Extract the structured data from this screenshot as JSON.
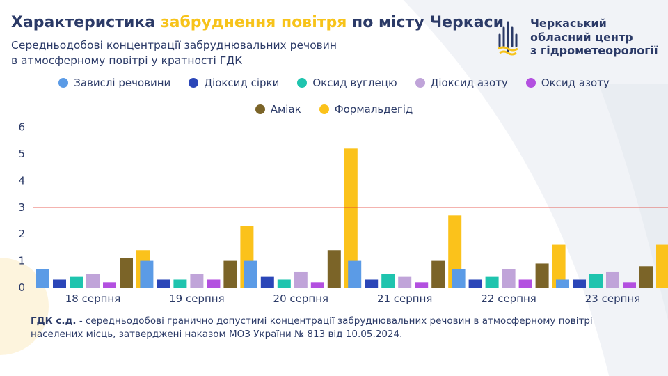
{
  "header": {
    "title_part1": "Характеристика ",
    "title_highlight": "забруднення повітря",
    "title_part2": " по місту Черкаси",
    "subtitle_line1": "Середньодобові концентрації забруднювальних речовин",
    "subtitle_line2": "в атмосферному повітрі у кратності ГДК"
  },
  "logo": {
    "line1": "Черкаський",
    "line2": "обласний центр",
    "line3": "з гідрометеорології",
    "icon": "water-drop-icon"
  },
  "colors": {
    "title": "#2b3a67",
    "highlight": "#f7c31a",
    "threshold": "#e0342a"
  },
  "chart_data": {
    "type": "bar",
    "categories": [
      "18 серпня",
      "19 серпня",
      "20 серпня",
      "21 серпня",
      "22 серпня",
      "23 серпня"
    ],
    "series": [
      {
        "name": "Завислі речовини",
        "color": "#5b9be6",
        "values": [
          0.7,
          1.0,
          1.0,
          1.0,
          0.7,
          0.3
        ]
      },
      {
        "name": "Діоксид сірки",
        "color": "#2b46b8",
        "values": [
          0.3,
          0.3,
          0.4,
          0.3,
          0.3,
          0.3
        ]
      },
      {
        "name": "Оксид вуглецю",
        "color": "#1fc4ae",
        "values": [
          0.4,
          0.3,
          0.3,
          0.5,
          0.4,
          0.5
        ]
      },
      {
        "name": "Діоксид азоту",
        "color": "#c0a4d9",
        "values": [
          0.5,
          0.5,
          0.6,
          0.4,
          0.7,
          0.6
        ]
      },
      {
        "name": "Оксид азоту",
        "color": "#b350e0",
        "values": [
          0.2,
          0.3,
          0.2,
          0.2,
          0.3,
          0.2
        ]
      },
      {
        "name": "Аміак",
        "color": "#7b6428",
        "values": [
          1.1,
          1.0,
          1.4,
          1.0,
          0.9,
          0.8
        ]
      },
      {
        "name": "Формальдегід",
        "color": "#fbc21b",
        "values": [
          1.4,
          2.3,
          5.2,
          2.7,
          1.6,
          1.6
        ]
      }
    ],
    "ylim": [
      0,
      6
    ],
    "yticks": [
      "0",
      "1",
      "2",
      "3",
      "4",
      "5",
      "6"
    ],
    "threshold": 3,
    "grid": false,
    "legend_position": "top"
  },
  "footnote": {
    "bold": "ГДК с.д.",
    "text": " - середньодобові гранично допустимі концентрації забруднювальних речовин в атмосферному повітрі населених місць, затверджені наказом МОЗ України № 813 від 10.05.2024."
  }
}
